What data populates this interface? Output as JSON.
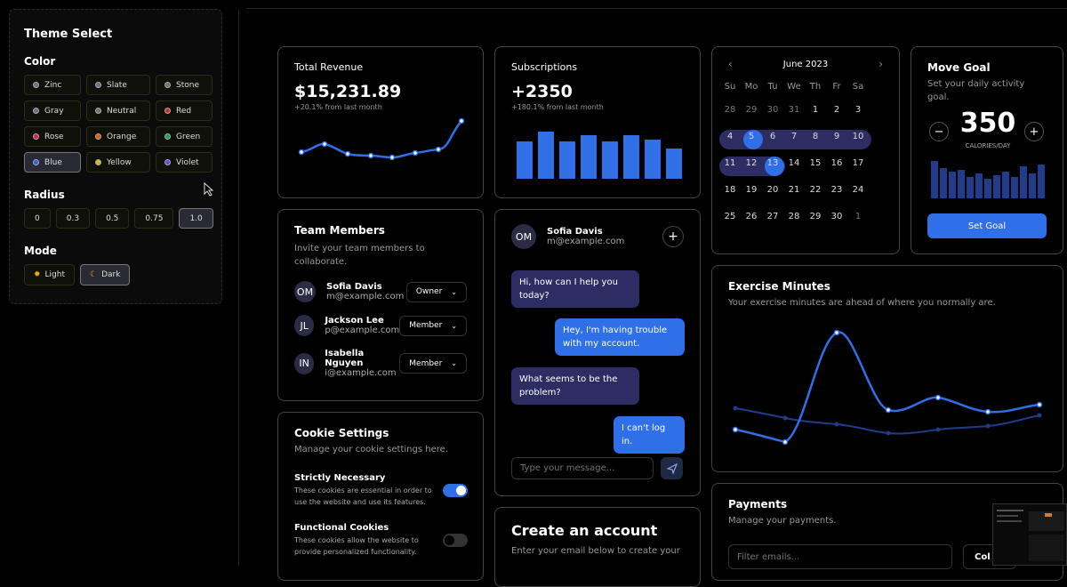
{
  "theme_panel": {
    "title": "Theme Select",
    "color_label": "Color",
    "colors": [
      {
        "label": "Zinc",
        "dot": "#71717a"
      },
      {
        "label": "Slate",
        "dot": "#64748b"
      },
      {
        "label": "Stone",
        "dot": "#78716c"
      },
      {
        "label": "Gray",
        "dot": "#6b7280"
      },
      {
        "label": "Neutral",
        "dot": "#737373"
      },
      {
        "label": "Red",
        "dot": "#dc2626"
      },
      {
        "label": "Rose",
        "dot": "#e11d48"
      },
      {
        "label": "Orange",
        "dot": "#ea580c"
      },
      {
        "label": "Green",
        "dot": "#16a34a"
      },
      {
        "label": "Blue",
        "dot": "#2563eb"
      },
      {
        "label": "Yellow",
        "dot": "#eab308"
      },
      {
        "label": "Violet",
        "dot": "#7c3aed"
      }
    ],
    "selected_color": "Blue",
    "radius_label": "Radius",
    "radii": [
      "0",
      "0.3",
      "0.5",
      "0.75",
      "1.0"
    ],
    "selected_radius": "1.0",
    "mode_label": "Mode",
    "modes": [
      {
        "label": "Light",
        "icon": "sun-icon"
      },
      {
        "label": "Dark",
        "icon": "moon-icon"
      }
    ],
    "selected_mode": "Dark"
  },
  "revenue": {
    "title": "Total Revenue",
    "value": "$15,231.89",
    "change": "+20.1% from last month"
  },
  "subscriptions": {
    "title": "Subscriptions",
    "value": "+2350",
    "change": "+180.1% from last month"
  },
  "calendar": {
    "month": "June 2023",
    "weekdays": [
      "Su",
      "Mo",
      "Tu",
      "We",
      "Th",
      "Fr",
      "Sa"
    ],
    "weeks": [
      [
        "28",
        "29",
        "30",
        "31",
        "1",
        "2",
        "3"
      ],
      [
        "4",
        "5",
        "6",
        "7",
        "8",
        "9",
        "10"
      ],
      [
        "11",
        "12",
        "13",
        "14",
        "15",
        "16",
        "17"
      ],
      [
        "18",
        "19",
        "20",
        "21",
        "22",
        "23",
        "24"
      ],
      [
        "25",
        "26",
        "27",
        "28",
        "29",
        "30",
        "1"
      ]
    ]
  },
  "move_goal": {
    "title": "Move Goal",
    "subtitle": "Set your daily activity goal.",
    "value": "350",
    "unit": "CALORIES/DAY",
    "button": "Set Goal",
    "minus": "−",
    "plus": "+"
  },
  "team": {
    "title": "Team Members",
    "subtitle": "Invite your team members to collaborate.",
    "members": [
      {
        "initials": "OM",
        "name": "Sofia Davis",
        "email": "m@example.com",
        "role": "Owner"
      },
      {
        "initials": "JL",
        "name": "Jackson Lee",
        "email": "p@example.com",
        "role": "Member"
      },
      {
        "initials": "IN",
        "name": "Isabella Nguyen",
        "email": "i@example.com",
        "role": "Member"
      }
    ]
  },
  "chat": {
    "initials": "OM",
    "name": "Sofia Davis",
    "email": "m@example.com",
    "messages": [
      {
        "side": "left",
        "text": "Hi, how can I help you today?"
      },
      {
        "side": "right",
        "text": "Hey, I'm having trouble with my account."
      },
      {
        "side": "left",
        "text": "What seems to be the problem?"
      },
      {
        "side": "right",
        "text": "I can't log in."
      }
    ],
    "input_placeholder": "Type your message..."
  },
  "exercise": {
    "title": "Exercise Minutes",
    "subtitle": "Your exercise minutes are ahead of where you normally are."
  },
  "cookies": {
    "title": "Cookie Settings",
    "subtitle": "Manage your cookie settings here.",
    "items": [
      {
        "title": "Strictly Necessary",
        "desc": "These cookies are essential in order to use the website and use its features.",
        "on": true
      },
      {
        "title": "Functional Cookies",
        "desc": "These cookies allow the website to provide personalized functionality.",
        "on": false
      }
    ]
  },
  "create_account": {
    "title": "Create an account",
    "subtitle": "Enter your email below to create your"
  },
  "payments": {
    "title": "Payments",
    "subtitle": "Manage your payments.",
    "filter_placeholder": "Filter emails...",
    "columns_button": "Col"
  },
  "accent": "#2f6fe8"
}
